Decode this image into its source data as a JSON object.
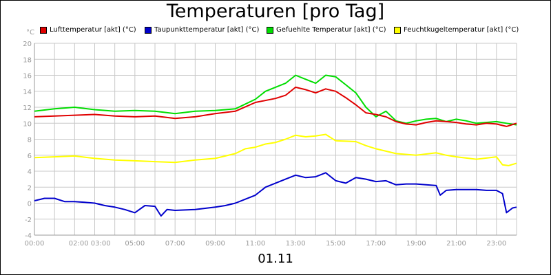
{
  "chart_data": {
    "type": "line",
    "title": "Temperaturen [pro Tag]",
    "date_label": "01.11",
    "unit_label": "°C",
    "ylim": [
      -4,
      20
    ],
    "y_ticks": [
      -4,
      -2,
      0,
      2,
      4,
      6,
      8,
      10,
      12,
      14,
      16,
      18,
      20
    ],
    "x_range_hours": [
      0,
      24
    ],
    "x_ticks": [
      {
        "h": 0,
        "label": "00:00"
      },
      {
        "h": 2.75,
        "label": "02:00 03:00"
      },
      {
        "h": 5,
        "label": "05:00"
      },
      {
        "h": 7,
        "label": "07:00"
      },
      {
        "h": 9,
        "label": "09:00"
      },
      {
        "h": 11,
        "label": "11:00"
      },
      {
        "h": 13,
        "label": "13:00"
      },
      {
        "h": 15,
        "label": "15:00"
      },
      {
        "h": 17,
        "label": "17:00"
      },
      {
        "h": 19,
        "label": "19:00"
      },
      {
        "h": 21,
        "label": "21:00"
      },
      {
        "h": 23,
        "label": "23:00"
      }
    ],
    "series": [
      {
        "name": "Lufttemperatur [akt] (°C)",
        "color": "#e00000",
        "points": [
          [
            0,
            10.8
          ],
          [
            1,
            10.9
          ],
          [
            2,
            11.0
          ],
          [
            3,
            11.1
          ],
          [
            4,
            10.9
          ],
          [
            5,
            10.8
          ],
          [
            6,
            10.9
          ],
          [
            7,
            10.6
          ],
          [
            8,
            10.8
          ],
          [
            9,
            11.2
          ],
          [
            10,
            11.5
          ],
          [
            11,
            12.6
          ],
          [
            12,
            13.1
          ],
          [
            12.5,
            13.5
          ],
          [
            13,
            14.5
          ],
          [
            13.5,
            14.2
          ],
          [
            14,
            13.8
          ],
          [
            14.5,
            14.3
          ],
          [
            15,
            14.0
          ],
          [
            15.5,
            13.2
          ],
          [
            16,
            12.3
          ],
          [
            16.5,
            11.3
          ],
          [
            17,
            11.1
          ],
          [
            17.5,
            10.8
          ],
          [
            18,
            10.2
          ],
          [
            18.5,
            9.9
          ],
          [
            19,
            9.8
          ],
          [
            19.5,
            10.1
          ],
          [
            20,
            10.3
          ],
          [
            20.5,
            10.2
          ],
          [
            21,
            10.1
          ],
          [
            21.5,
            9.9
          ],
          [
            22,
            9.8
          ],
          [
            22.5,
            10.0
          ],
          [
            23,
            9.9
          ],
          [
            23.5,
            9.6
          ],
          [
            24,
            10.0
          ]
        ]
      },
      {
        "name": "Taupunkttemperatur [akt] (°C)",
        "color": "#0000cc",
        "points": [
          [
            0,
            0.3
          ],
          [
            0.5,
            0.6
          ],
          [
            1,
            0.6
          ],
          [
            1.5,
            0.2
          ],
          [
            2,
            0.2
          ],
          [
            2.5,
            0.1
          ],
          [
            3,
            0.0
          ],
          [
            3.5,
            -0.3
          ],
          [
            4,
            -0.5
          ],
          [
            4.5,
            -0.8
          ],
          [
            5,
            -1.2
          ],
          [
            5.5,
            -0.3
          ],
          [
            6,
            -0.4
          ],
          [
            6.3,
            -1.6
          ],
          [
            6.6,
            -0.8
          ],
          [
            7,
            -0.9
          ],
          [
            8,
            -0.8
          ],
          [
            9,
            -0.5
          ],
          [
            9.5,
            -0.3
          ],
          [
            10,
            0.0
          ],
          [
            10.5,
            0.5
          ],
          [
            11,
            1.0
          ],
          [
            11.5,
            2.0
          ],
          [
            12,
            2.5
          ],
          [
            12.5,
            3.0
          ],
          [
            13,
            3.5
          ],
          [
            13.5,
            3.2
          ],
          [
            14,
            3.3
          ],
          [
            14.5,
            3.8
          ],
          [
            15,
            2.8
          ],
          [
            15.5,
            2.5
          ],
          [
            16,
            3.2
          ],
          [
            16.5,
            3.0
          ],
          [
            17,
            2.7
          ],
          [
            17.5,
            2.8
          ],
          [
            18,
            2.3
          ],
          [
            18.5,
            2.4
          ],
          [
            19,
            2.4
          ],
          [
            19.5,
            2.3
          ],
          [
            20,
            2.2
          ],
          [
            20.2,
            1.0
          ],
          [
            20.5,
            1.6
          ],
          [
            21,
            1.7
          ],
          [
            22,
            1.7
          ],
          [
            22.5,
            1.6
          ],
          [
            23,
            1.6
          ],
          [
            23.3,
            1.2
          ],
          [
            23.5,
            -1.2
          ],
          [
            23.8,
            -0.6
          ],
          [
            24,
            -0.5
          ]
        ]
      },
      {
        "name": "Gefuehlte Temperatur [akt] (°C)",
        "color": "#00dd00",
        "points": [
          [
            0,
            11.5
          ],
          [
            1,
            11.8
          ],
          [
            2,
            12.0
          ],
          [
            3,
            11.7
          ],
          [
            4,
            11.5
          ],
          [
            5,
            11.6
          ],
          [
            6,
            11.5
          ],
          [
            7,
            11.2
          ],
          [
            8,
            11.5
          ],
          [
            9,
            11.6
          ],
          [
            10,
            11.8
          ],
          [
            11,
            13.0
          ],
          [
            11.5,
            14.0
          ],
          [
            12,
            14.5
          ],
          [
            12.5,
            15.0
          ],
          [
            13,
            16.0
          ],
          [
            13.5,
            15.5
          ],
          [
            14,
            15.0
          ],
          [
            14.5,
            16.0
          ],
          [
            15,
            15.8
          ],
          [
            15.5,
            14.8
          ],
          [
            16,
            13.8
          ],
          [
            16.5,
            12.0
          ],
          [
            17,
            10.8
          ],
          [
            17.5,
            11.5
          ],
          [
            18,
            10.3
          ],
          [
            18.5,
            10.0
          ],
          [
            19,
            10.3
          ],
          [
            19.5,
            10.5
          ],
          [
            20,
            10.6
          ],
          [
            20.5,
            10.2
          ],
          [
            21,
            10.5
          ],
          [
            21.5,
            10.3
          ],
          [
            22,
            10.0
          ],
          [
            23,
            10.2
          ],
          [
            23.5,
            10.0
          ],
          [
            24,
            9.8
          ]
        ]
      },
      {
        "name": "Feuchtkugeltemperatur [akt] (°C)",
        "color": "#ffff00",
        "points": [
          [
            0,
            5.7
          ],
          [
            1,
            5.8
          ],
          [
            2,
            5.9
          ],
          [
            3,
            5.6
          ],
          [
            4,
            5.4
          ],
          [
            5,
            5.3
          ],
          [
            6,
            5.2
          ],
          [
            7,
            5.1
          ],
          [
            8,
            5.4
          ],
          [
            9,
            5.6
          ],
          [
            10,
            6.2
          ],
          [
            10.5,
            6.8
          ],
          [
            11,
            7.0
          ],
          [
            11.5,
            7.4
          ],
          [
            12,
            7.6
          ],
          [
            12.5,
            8.0
          ],
          [
            13,
            8.5
          ],
          [
            13.5,
            8.3
          ],
          [
            14,
            8.4
          ],
          [
            14.5,
            8.6
          ],
          [
            15,
            7.8
          ],
          [
            16,
            7.7
          ],
          [
            16.5,
            7.2
          ],
          [
            17,
            6.8
          ],
          [
            18,
            6.2
          ],
          [
            19,
            6.0
          ],
          [
            20,
            6.3
          ],
          [
            20.5,
            6.0
          ],
          [
            21,
            5.8
          ],
          [
            22,
            5.5
          ],
          [
            23,
            5.8
          ],
          [
            23.3,
            4.8
          ],
          [
            23.6,
            4.7
          ],
          [
            24,
            5.0
          ]
        ]
      }
    ]
  }
}
